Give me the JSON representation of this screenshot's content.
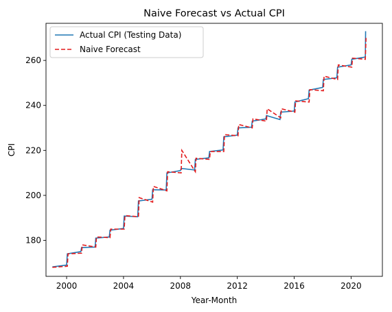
{
  "chart_data": {
    "type": "line",
    "title": "Naive Forecast vs Actual CPI",
    "xlabel": "Year-Month",
    "ylabel": "CPI",
    "xlim": [
      1998.55,
      2022.2
    ],
    "ylim": [
      164.0,
      276.5
    ],
    "x_ticks": [
      2000,
      2004,
      2008,
      2012,
      2016,
      2020
    ],
    "x_tick_labels": [
      "2000",
      "2004",
      "2008",
      "2012",
      "2016",
      "2020"
    ],
    "y_ticks": [
      180,
      200,
      220,
      240,
      260
    ],
    "y_tick_labels": [
      "180",
      "200",
      "220",
      "240",
      "260"
    ],
    "grid": false,
    "legend_position": "top-left",
    "series": [
      {
        "name": "Actual CPI (Testing Data)",
        "color": "#1f77b4",
        "style": "solid",
        "points": [
          [
            1999.0,
            168.2
          ],
          [
            2000.0,
            169.0
          ],
          [
            2000.05,
            174.0
          ],
          [
            2001.0,
            175.0
          ],
          [
            2001.05,
            176.8
          ],
          [
            2002.0,
            177.0
          ],
          [
            2002.05,
            181.0
          ],
          [
            2003.0,
            181.5
          ],
          [
            2003.05,
            184.5
          ],
          [
            2004.0,
            185.3
          ],
          [
            2004.05,
            190.8
          ],
          [
            2005.0,
            190.5
          ],
          [
            2005.05,
            197.5
          ],
          [
            2006.0,
            198.3
          ],
          [
            2006.05,
            202.5
          ],
          [
            2007.0,
            202.4
          ],
          [
            2007.05,
            210.0
          ],
          [
            2008.0,
            211.0
          ],
          [
            2008.05,
            212.0
          ],
          [
            2009.0,
            211.3
          ],
          [
            2009.05,
            216.0
          ],
          [
            2010.0,
            216.7
          ],
          [
            2010.05,
            219.5
          ],
          [
            2011.0,
            220.2
          ],
          [
            2011.05,
            226.0
          ],
          [
            2012.0,
            226.8
          ],
          [
            2012.05,
            230.0
          ],
          [
            2013.0,
            230.3
          ],
          [
            2013.05,
            233.0
          ],
          [
            2014.0,
            234.0
          ],
          [
            2014.05,
            235.5
          ],
          [
            2015.0,
            233.7
          ],
          [
            2015.05,
            237.0
          ],
          [
            2016.0,
            237.5
          ],
          [
            2016.05,
            241.5
          ],
          [
            2017.0,
            243.0
          ],
          [
            2017.05,
            246.8
          ],
          [
            2018.0,
            248.0
          ],
          [
            2018.05,
            251.5
          ],
          [
            2019.0,
            252.3
          ],
          [
            2019.05,
            257.0
          ],
          [
            2020.0,
            258.0
          ],
          [
            2020.05,
            260.5
          ],
          [
            2021.0,
            261.5
          ],
          [
            2021.02,
            273.0
          ]
        ]
      },
      {
        "name": "Naive Forecast",
        "color": "#e31a1c",
        "style": "dashed",
        "points": [
          [
            1999.0,
            168.0
          ],
          [
            2000.05,
            168.5
          ],
          [
            2000.1,
            174.0
          ],
          [
            2001.05,
            174.3
          ],
          [
            2001.1,
            178.0
          ],
          [
            2002.05,
            177.0
          ],
          [
            2002.1,
            181.5
          ],
          [
            2003.05,
            181.2
          ],
          [
            2003.1,
            185.0
          ],
          [
            2004.05,
            185.0
          ],
          [
            2004.1,
            191.0
          ],
          [
            2005.05,
            190.5
          ],
          [
            2005.1,
            199.0
          ],
          [
            2006.05,
            197.0
          ],
          [
            2006.1,
            204.0
          ],
          [
            2007.05,
            202.0
          ],
          [
            2007.1,
            210.5
          ],
          [
            2008.05,
            210.0
          ],
          [
            2008.1,
            220.0
          ],
          [
            2009.05,
            210.5
          ],
          [
            2009.1,
            216.5
          ],
          [
            2010.05,
            216.0
          ],
          [
            2010.1,
            219.5
          ],
          [
            2011.05,
            219.5
          ],
          [
            2011.1,
            227.0
          ],
          [
            2012.05,
            226.5
          ],
          [
            2012.1,
            231.5
          ],
          [
            2013.05,
            230.0
          ],
          [
            2013.1,
            234.0
          ],
          [
            2014.05,
            233.0
          ],
          [
            2014.1,
            238.5
          ],
          [
            2015.05,
            234.5
          ],
          [
            2015.1,
            238.5
          ],
          [
            2016.05,
            237.0
          ],
          [
            2016.1,
            242.0
          ],
          [
            2017.05,
            241.5
          ],
          [
            2017.1,
            247.0
          ],
          [
            2018.05,
            246.5
          ],
          [
            2018.1,
            253.0
          ],
          [
            2019.05,
            251.5
          ],
          [
            2019.1,
            258.0
          ],
          [
            2020.05,
            257.0
          ],
          [
            2020.1,
            261.0
          ],
          [
            2021.0,
            260.5
          ],
          [
            2021.05,
            270.0
          ]
        ]
      }
    ]
  }
}
